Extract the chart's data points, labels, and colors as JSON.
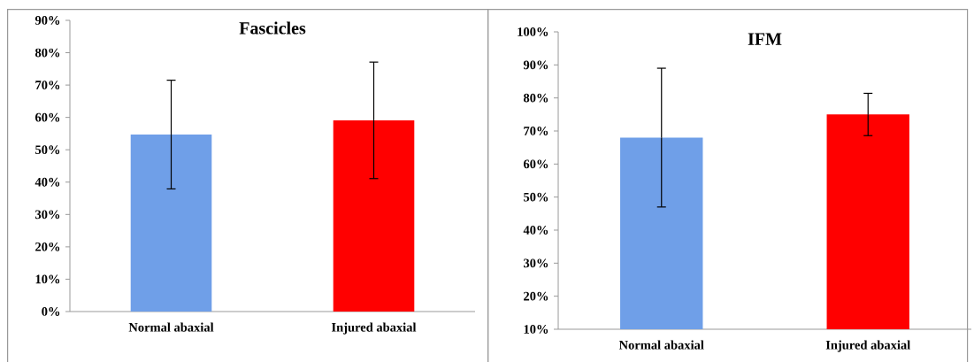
{
  "chart_data": [
    {
      "type": "bar",
      "title": "Fascicles",
      "categories": [
        "Normal abaxial",
        "Injured abaxial"
      ],
      "values": [
        54.7,
        59.1
      ],
      "errors": [
        16.8,
        18.0
      ],
      "colors": [
        "#6f9fe8",
        "#ff0000"
      ],
      "ylim": [
        0,
        90
      ],
      "yticks": [
        {
          "value": 0,
          "label": "0%"
        },
        {
          "value": 10,
          "label": "10%"
        },
        {
          "value": 20,
          "label": "20%"
        },
        {
          "value": 30,
          "label": "30%"
        },
        {
          "value": 40,
          "label": "40%"
        },
        {
          "value": 50,
          "label": "50%"
        },
        {
          "value": 60,
          "label": "60%"
        },
        {
          "value": 70,
          "label": "70%"
        },
        {
          "value": 80,
          "label": "80%"
        },
        {
          "value": 90,
          "label": "90%"
        }
      ]
    },
    {
      "type": "bar",
      "title": "IFM",
      "categories": [
        "Normal abaxial",
        "Injured abaxial"
      ],
      "values": [
        68.0,
        75.0
      ],
      "errors": [
        21.0,
        6.4
      ],
      "colors": [
        "#6f9fe8",
        "#ff0000"
      ],
      "ylim": [
        10,
        100
      ],
      "yticks": [
        {
          "value": 10,
          "label": "10%"
        },
        {
          "value": 20,
          "label": "20%"
        },
        {
          "value": 30,
          "label": "30%"
        },
        {
          "value": 40,
          "label": "40%"
        },
        {
          "value": 50,
          "label": "50%"
        },
        {
          "value": 60,
          "label": "60%"
        },
        {
          "value": 70,
          "label": "70%"
        },
        {
          "value": 80,
          "label": "80%"
        },
        {
          "value": 90,
          "label": "90%"
        },
        {
          "value": 100,
          "label": "100%"
        }
      ]
    }
  ]
}
